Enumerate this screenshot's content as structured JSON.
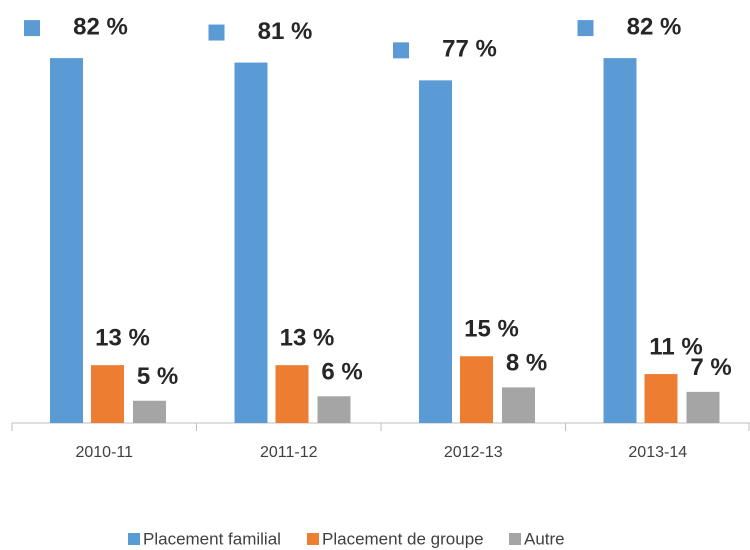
{
  "chart_data": {
    "type": "bar",
    "categories": [
      "2010-11",
      "2011-12",
      "2012-13",
      "2013-14"
    ],
    "series": [
      {
        "name": "Placement familial",
        "color": "#5b9bd5",
        "values": [
          82,
          81,
          77,
          82
        ],
        "value_labels": [
          "82 %",
          "81 %",
          "77 %",
          "82 %"
        ]
      },
      {
        "name": "Placement de groupe",
        "color": "#ed7d31",
        "values": [
          13,
          13,
          15,
          11
        ],
        "value_labels": [
          "13 %",
          "13 %",
          "15 %",
          "11 %"
        ]
      },
      {
        "name": "Autre",
        "color": "#a5a5a5",
        "values": [
          5,
          6,
          8,
          7
        ],
        "value_labels": [
          "5 %",
          "6 %",
          "8 %",
          "7 %"
        ]
      }
    ],
    "legend": "bottom"
  }
}
